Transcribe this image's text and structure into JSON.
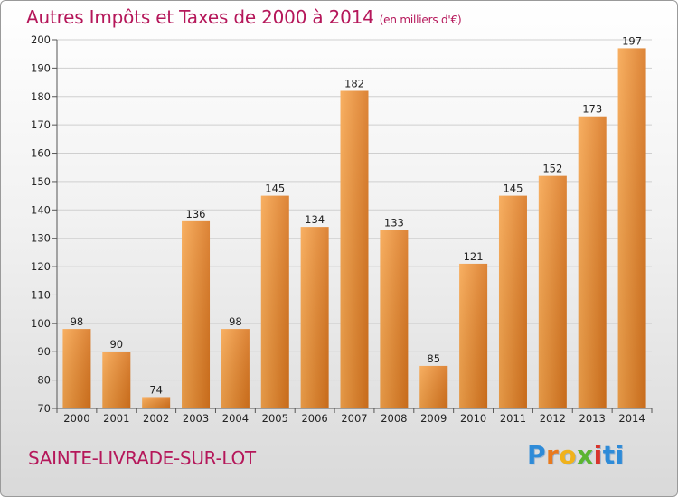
{
  "header": {
    "title": "Autres Impôts et Taxes de 2000 à 2014",
    "unit": "(en milliers d'€)"
  },
  "footer": {
    "commune": "SAINTE-LIVRADE-SUR-LOT",
    "logo_letters": [
      "P",
      "r",
      "o",
      "x",
      "i",
      "t",
      "i"
    ]
  },
  "colors": {
    "title": "#b5175a",
    "bar_light": "#f7a54d",
    "bar_dark": "#d8741d",
    "grid": "#cfcfcf",
    "axis": "#555555"
  },
  "chart_data": {
    "type": "bar",
    "title": "Autres Impôts et Taxes de 2000 à 2014",
    "subtitle": "(en milliers d'€)",
    "xlabel": "",
    "ylabel": "",
    "categories": [
      "2000",
      "2001",
      "2002",
      "2003",
      "2004",
      "2005",
      "2006",
      "2007",
      "2008",
      "2009",
      "2010",
      "2011",
      "2012",
      "2013",
      "2014"
    ],
    "values": [
      98,
      90,
      74,
      136,
      98,
      145,
      134,
      182,
      133,
      85,
      121,
      145,
      152,
      173,
      197
    ],
    "ylim": [
      70,
      200
    ],
    "yticks": [
      70,
      80,
      90,
      100,
      110,
      120,
      130,
      140,
      150,
      160,
      170,
      180,
      190,
      200
    ],
    "grid": true,
    "legend": "none",
    "data_labels": true
  }
}
